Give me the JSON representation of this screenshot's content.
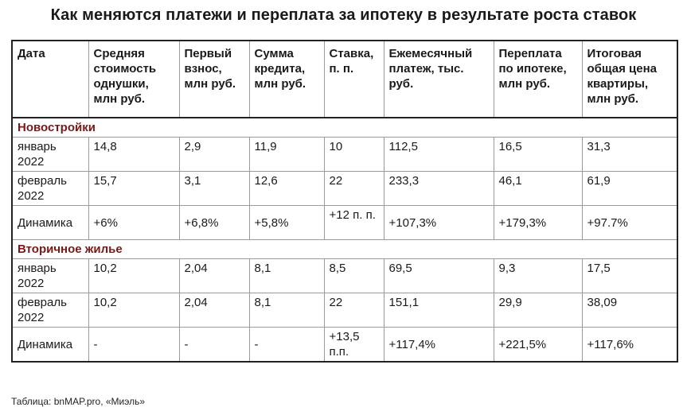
{
  "title": "Как меняются платежи и переплата за ипотеку в результате роста ставок",
  "headers": [
    "Дата",
    "Средняя стоимость однушки, млн руб.",
    "Первый взнос, млн руб.",
    "Сумма кредита, млн руб.",
    "Ставка, п. п.",
    "Ежемесячный платеж, тыс. руб.",
    "Переплата по ипотеке, млн руб.",
    "Итоговая общая цена квартиры, млн руб."
  ],
  "sections": [
    {
      "name": "Новостройки",
      "rows": [
        [
          "январь 2022",
          "14,8",
          "2,9",
          "11,9",
          "10",
          "112,5",
          "16,5",
          "31,3"
        ],
        [
          "февраль 2022",
          "15,7",
          "3,1",
          "12,6",
          "22",
          "233,3",
          "46,1",
          "61,9"
        ],
        [
          "Динамика",
          "+6%",
          "+6,8%",
          "+5,8%",
          "+12 п. п.",
          "+107,3%",
          "+179,3%",
          "+97.7%"
        ]
      ]
    },
    {
      "name": "Вторичное жилье",
      "rows": [
        [
          "январь 2022",
          "10,2",
          "2,04",
          "8,1",
          "8,5",
          "69,5",
          "9,3",
          "17,5"
        ],
        [
          "февраль 2022",
          "10,2",
          "2,04",
          "8,1",
          "22",
          "151,1",
          "29,9",
          "38,09"
        ],
        [
          "Динамика",
          "-",
          "-",
          "-",
          "+13,5 п.п.",
          "+117,4%",
          "+221,5%",
          "+117,6%"
        ]
      ]
    }
  ],
  "source": "Таблица: bnMAP.pro, «Миэль»"
}
